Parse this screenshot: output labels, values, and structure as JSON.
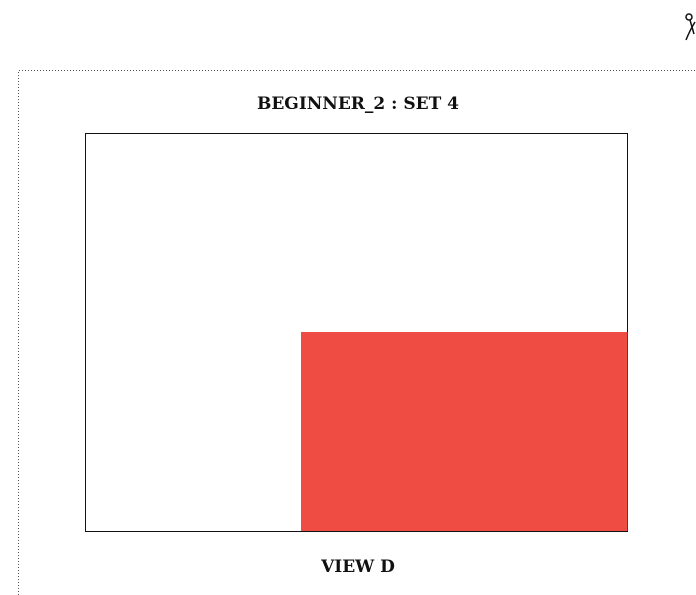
{
  "title": "BEGINNER_2 : SET 4",
  "caption": "VIEW D"
}
